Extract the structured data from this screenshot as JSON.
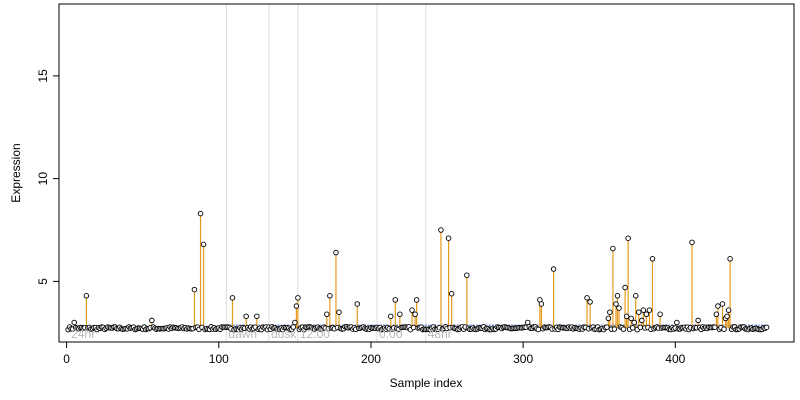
{
  "chart_data": {
    "type": "scatter",
    "title": "",
    "xlabel": "Sample index",
    "ylabel": "Expression",
    "xlim": [
      -5,
      478
    ],
    "ylim": [
      2.05,
      18.5
    ],
    "x_ticks": [
      0,
      100,
      200,
      300,
      400
    ],
    "y_ticks": [
      5,
      10,
      15
    ],
    "grid": false,
    "legend": "none",
    "colors": {
      "points": "#000000",
      "stems": "#e69a1a",
      "baseline": "#7a9ad6",
      "region_lines": "#dcdcdc",
      "region_labels": "#b8b8b8"
    },
    "baseline": {
      "y": 2.85,
      "x_start": 105,
      "x_end": 460
    },
    "regions": [
      {
        "x": 105,
        "label": "dawn"
      },
      {
        "x": 133,
        "label": "dusk"
      },
      {
        "x": 152,
        "label": "12:00"
      },
      {
        "x": 204,
        "label": "0:00"
      },
      {
        "x": 236,
        "label": "48hr"
      }
    ],
    "region_start_label": "24hr",
    "n_points": 460,
    "base_level": 2.72,
    "peaks": [
      {
        "x": 5,
        "y": 3.0
      },
      {
        "x": 13,
        "y": 4.3
      },
      {
        "x": 56,
        "y": 3.1
      },
      {
        "x": 84,
        "y": 4.6
      },
      {
        "x": 88,
        "y": 8.3
      },
      {
        "x": 90,
        "y": 6.8
      },
      {
        "x": 109,
        "y": 4.2
      },
      {
        "x": 118,
        "y": 3.3
      },
      {
        "x": 125,
        "y": 3.3
      },
      {
        "x": 150,
        "y": 3.0
      },
      {
        "x": 151,
        "y": 3.8
      },
      {
        "x": 152,
        "y": 4.2
      },
      {
        "x": 171,
        "y": 3.4
      },
      {
        "x": 173,
        "y": 4.3
      },
      {
        "x": 177,
        "y": 6.4
      },
      {
        "x": 179,
        "y": 3.5
      },
      {
        "x": 191,
        "y": 3.9
      },
      {
        "x": 213,
        "y": 3.3
      },
      {
        "x": 216,
        "y": 4.1
      },
      {
        "x": 219,
        "y": 3.4
      },
      {
        "x": 227,
        "y": 3.6
      },
      {
        "x": 229,
        "y": 3.4
      },
      {
        "x": 230,
        "y": 4.1
      },
      {
        "x": 246,
        "y": 7.5
      },
      {
        "x": 251,
        "y": 7.1
      },
      {
        "x": 253,
        "y": 4.4
      },
      {
        "x": 263,
        "y": 5.3
      },
      {
        "x": 303,
        "y": 3.0
      },
      {
        "x": 311,
        "y": 4.1
      },
      {
        "x": 312,
        "y": 3.9
      },
      {
        "x": 320,
        "y": 5.6
      },
      {
        "x": 342,
        "y": 4.2
      },
      {
        "x": 344,
        "y": 4.0
      },
      {
        "x": 356,
        "y": 3.2
      },
      {
        "x": 357,
        "y": 3.5
      },
      {
        "x": 359,
        "y": 6.6
      },
      {
        "x": 361,
        "y": 3.9
      },
      {
        "x": 362,
        "y": 4.3
      },
      {
        "x": 363,
        "y": 3.7
      },
      {
        "x": 367,
        "y": 4.7
      },
      {
        "x": 368,
        "y": 3.3
      },
      {
        "x": 369,
        "y": 7.1
      },
      {
        "x": 371,
        "y": 3.2
      },
      {
        "x": 373,
        "y": 3.0
      },
      {
        "x": 374,
        "y": 4.3
      },
      {
        "x": 376,
        "y": 3.5
      },
      {
        "x": 378,
        "y": 3.1
      },
      {
        "x": 379,
        "y": 3.6
      },
      {
        "x": 381,
        "y": 3.4
      },
      {
        "x": 383,
        "y": 3.6
      },
      {
        "x": 385,
        "y": 6.1
      },
      {
        "x": 390,
        "y": 3.4
      },
      {
        "x": 401,
        "y": 3.0
      },
      {
        "x": 411,
        "y": 6.9
      },
      {
        "x": 415,
        "y": 3.1
      },
      {
        "x": 427,
        "y": 3.4
      },
      {
        "x": 428,
        "y": 3.8
      },
      {
        "x": 431,
        "y": 3.9
      },
      {
        "x": 433,
        "y": 3.2
      },
      {
        "x": 434,
        "y": 3.3
      },
      {
        "x": 435,
        "y": 3.6
      },
      {
        "x": 436,
        "y": 6.1
      }
    ]
  }
}
